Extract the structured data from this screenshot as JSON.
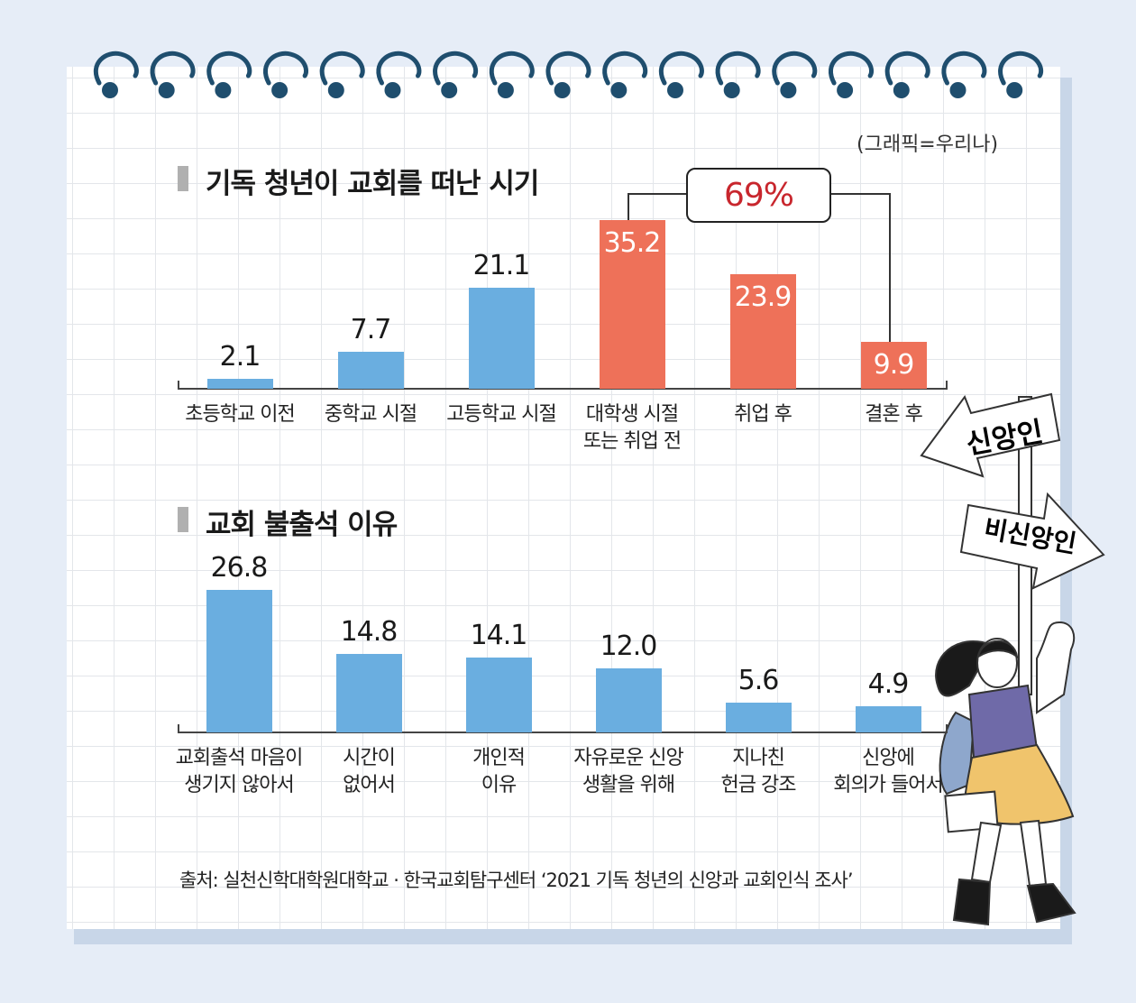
{
  "credit": "(그래픽=우리나)",
  "chart_data": [
    {
      "type": "bar",
      "title": "기독 청년이 교회를 떠난 시기",
      "categories": [
        "초등학교 이전",
        "중학교 시절",
        "고등학교 시절",
        "대학생 시절\n또는 취업 전",
        "취업 후",
        "결혼 후"
      ],
      "values": [
        2.1,
        7.7,
        21.1,
        35.2,
        23.9,
        9.9
      ],
      "value_labels": [
        "2.1",
        "7.7",
        "21.1",
        "35.2",
        "23.9",
        "9.9"
      ],
      "highlight": [
        false,
        false,
        false,
        true,
        true,
        true
      ],
      "bracket_label": "69%",
      "colors": {
        "normal": "#6aaee0",
        "highlight": "#ee7159"
      }
    },
    {
      "type": "bar",
      "title": "교회 불출석 이유",
      "categories": [
        "교회출석 마음이\n생기지 않아서",
        "시간이\n없어서",
        "개인적\n이유",
        "자유로운 신앙\n생활을 위해",
        "지나친\n헌금 강조",
        "신앙에\n회의가 들어서"
      ],
      "values": [
        26.8,
        14.8,
        14.1,
        12.0,
        5.6,
        4.9
      ],
      "value_labels": [
        "26.8",
        "14.8",
        "14.1",
        "12.0",
        "5.6",
        "4.9"
      ],
      "colors": {
        "normal": "#6aaee0"
      }
    }
  ],
  "signs": {
    "left": "신앙인",
    "right": "비신앙인"
  },
  "source": "출처: 실천신학대학원대학교 · 한국교회탐구센터 ‘2021 기독 청년의 신앙과 교회인식 조사’",
  "colors": {
    "ring": "#1f4e6e",
    "shadow": "#c8d6e8",
    "background": "#e6edf7"
  }
}
